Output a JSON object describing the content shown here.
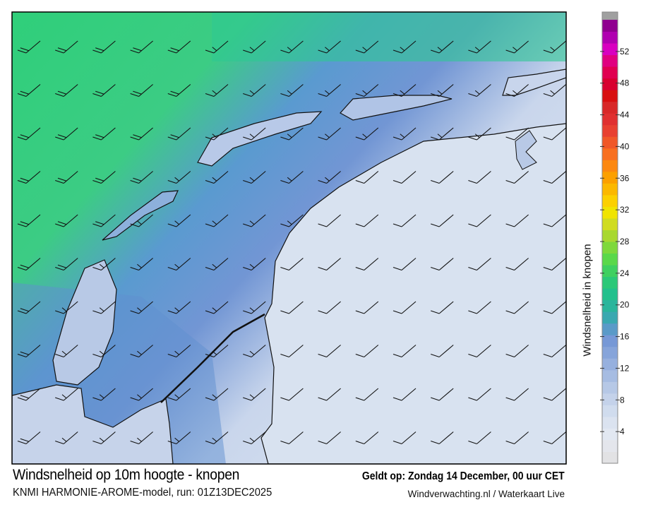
{
  "title": "Windsnelheid op 10m hoogte - knopen",
  "valid_time": "Geldt op: Zondag 14 December, 00 uur CET",
  "model_run": "KNMI HARMONIE-AROME-model, run: 01Z13DEC2025",
  "source": "Windverwachting.nl / Waterkaart Live",
  "colorbar": {
    "label": "Windsnelheid in knopen",
    "ticks": [
      4,
      8,
      12,
      16,
      20,
      24,
      28,
      32,
      36,
      40,
      44,
      48,
      52
    ],
    "max": 56,
    "colors": [
      "#e2e2e4",
      "#e4e6ec",
      "#e2e8f2",
      "#dbe3f0",
      "#d0dcee",
      "#c4d2ea",
      "#b6c8e6",
      "#a6bce2",
      "#96b0de",
      "#86a4da",
      "#7698d6",
      "#5a9ac8",
      "#3aa8b0",
      "#2ab59c",
      "#22c08c",
      "#2bc878",
      "#3fd060",
      "#5ad84a",
      "#7ed83c",
      "#a8d830",
      "#d0dc20",
      "#f0e400",
      "#fcd000",
      "#fcb800",
      "#fca000",
      "#fc8810",
      "#f87020",
      "#f05828",
      "#e84030",
      "#e03030",
      "#d82828",
      "#d81010",
      "#d80030",
      "#e00050",
      "#e00080",
      "#d800c0",
      "#b000b0",
      "#900090"
    ],
    "overflow_color": "#a0a0a0"
  },
  "wind_barbs": {
    "direction": "southwest",
    "speeds_kt": [
      [
        20,
        20,
        20,
        20,
        20,
        15,
        15,
        15,
        15,
        15,
        15,
        15,
        15,
        15,
        15
      ],
      [
        20,
        20,
        20,
        20,
        20,
        15,
        15,
        15,
        15,
        15,
        15,
        15,
        15,
        15,
        15
      ],
      [
        20,
        20,
        20,
        20,
        20,
        15,
        15,
        15,
        15,
        15,
        15,
        15,
        15,
        10,
        10
      ],
      [
        20,
        20,
        20,
        20,
        15,
        15,
        15,
        15,
        15,
        10,
        10,
        10,
        10,
        10,
        10
      ],
      [
        20,
        20,
        20,
        15,
        15,
        15,
        15,
        15,
        10,
        10,
        10,
        10,
        10,
        10,
        10
      ],
      [
        20,
        20,
        15,
        15,
        15,
        15,
        15,
        10,
        10,
        10,
        10,
        10,
        10,
        10,
        10
      ],
      [
        20,
        15,
        15,
        15,
        15,
        15,
        15,
        10,
        10,
        10,
        10,
        10,
        10,
        10,
        10
      ],
      [
        20,
        15,
        15,
        15,
        15,
        15,
        15,
        10,
        10,
        10,
        10,
        10,
        10,
        10,
        10
      ],
      [
        20,
        15,
        15,
        15,
        15,
        15,
        15,
        10,
        10,
        10,
        10,
        10,
        10,
        10,
        10
      ],
      [
        20,
        15,
        15,
        15,
        15,
        15,
        15,
        10,
        10,
        10,
        10,
        10,
        10,
        10,
        10
      ]
    ]
  }
}
